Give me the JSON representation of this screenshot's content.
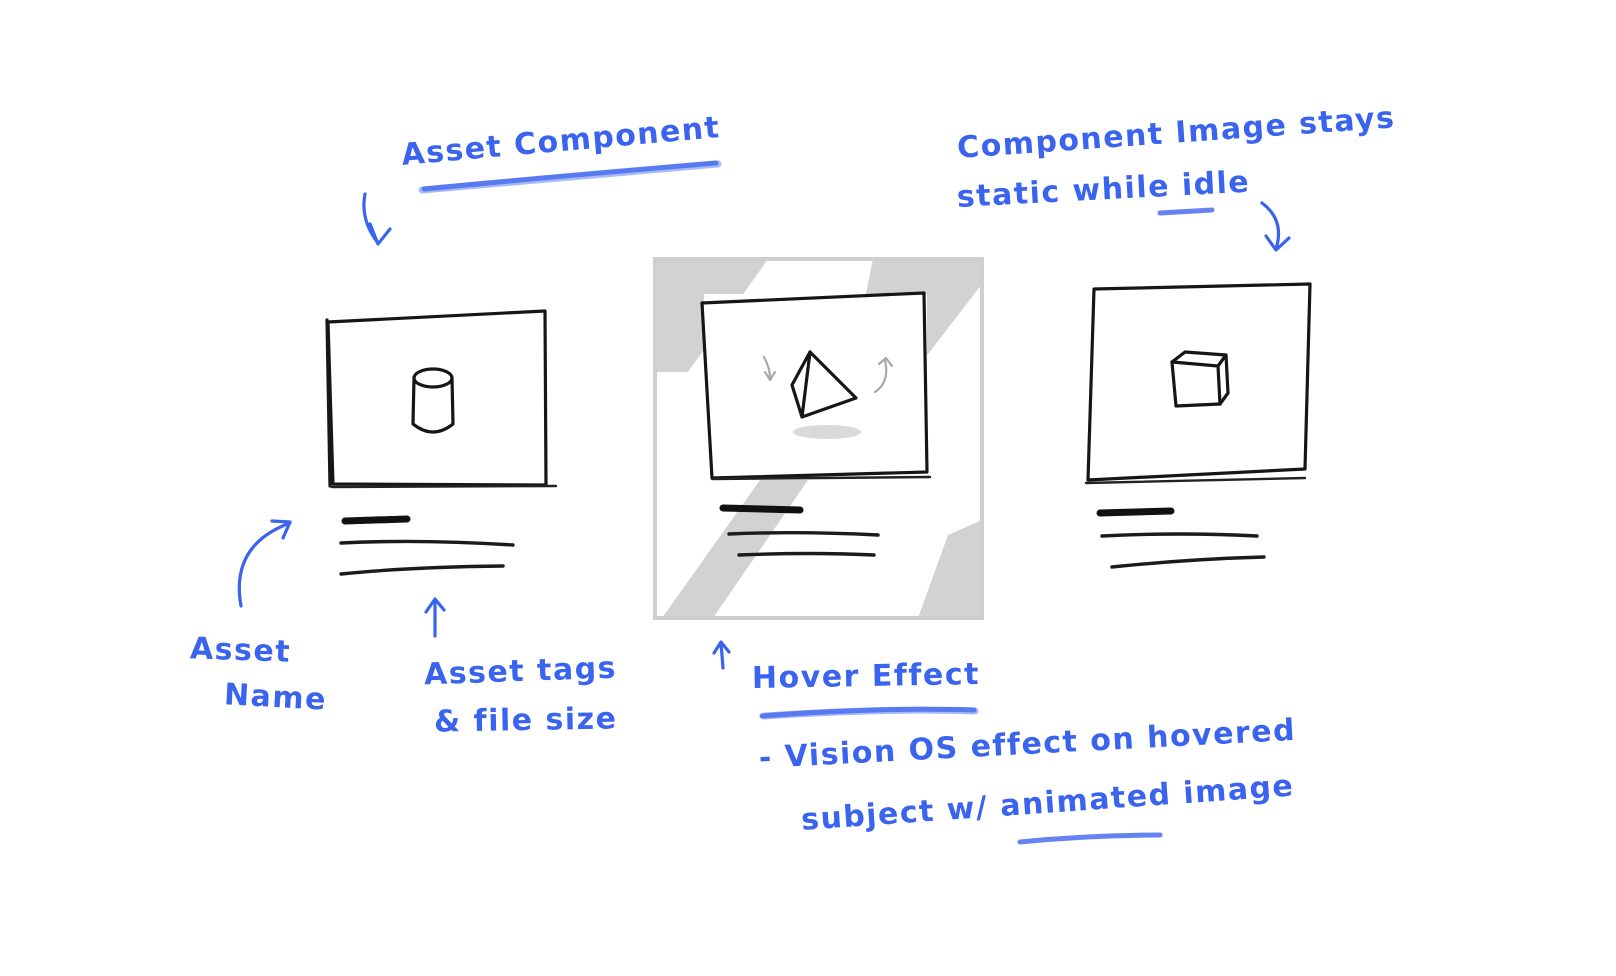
{
  "annotations": {
    "asset_component": "Asset Component",
    "component_image_line1": "Component Image stays",
    "component_image_line2": "static while idle",
    "asset_name_line1": "Asset",
    "asset_name_line2": "Name",
    "asset_tags_line1": "Asset tags",
    "asset_tags_line2": "& file size",
    "hover_effect": "Hover Effect",
    "vision_line1": "- Vision OS effect on hovered",
    "vision_line2": "subject w/ animated image"
  },
  "cards": [
    {
      "subject": "cylinder-icon",
      "state": "idle"
    },
    {
      "subject": "pyramid-icon",
      "state": "hovered"
    },
    {
      "subject": "cube-icon",
      "state": "idle"
    }
  ],
  "colors": {
    "annotation": "#3a63ee",
    "ink": "#161616",
    "hover_shade": "#d2d2d2"
  }
}
